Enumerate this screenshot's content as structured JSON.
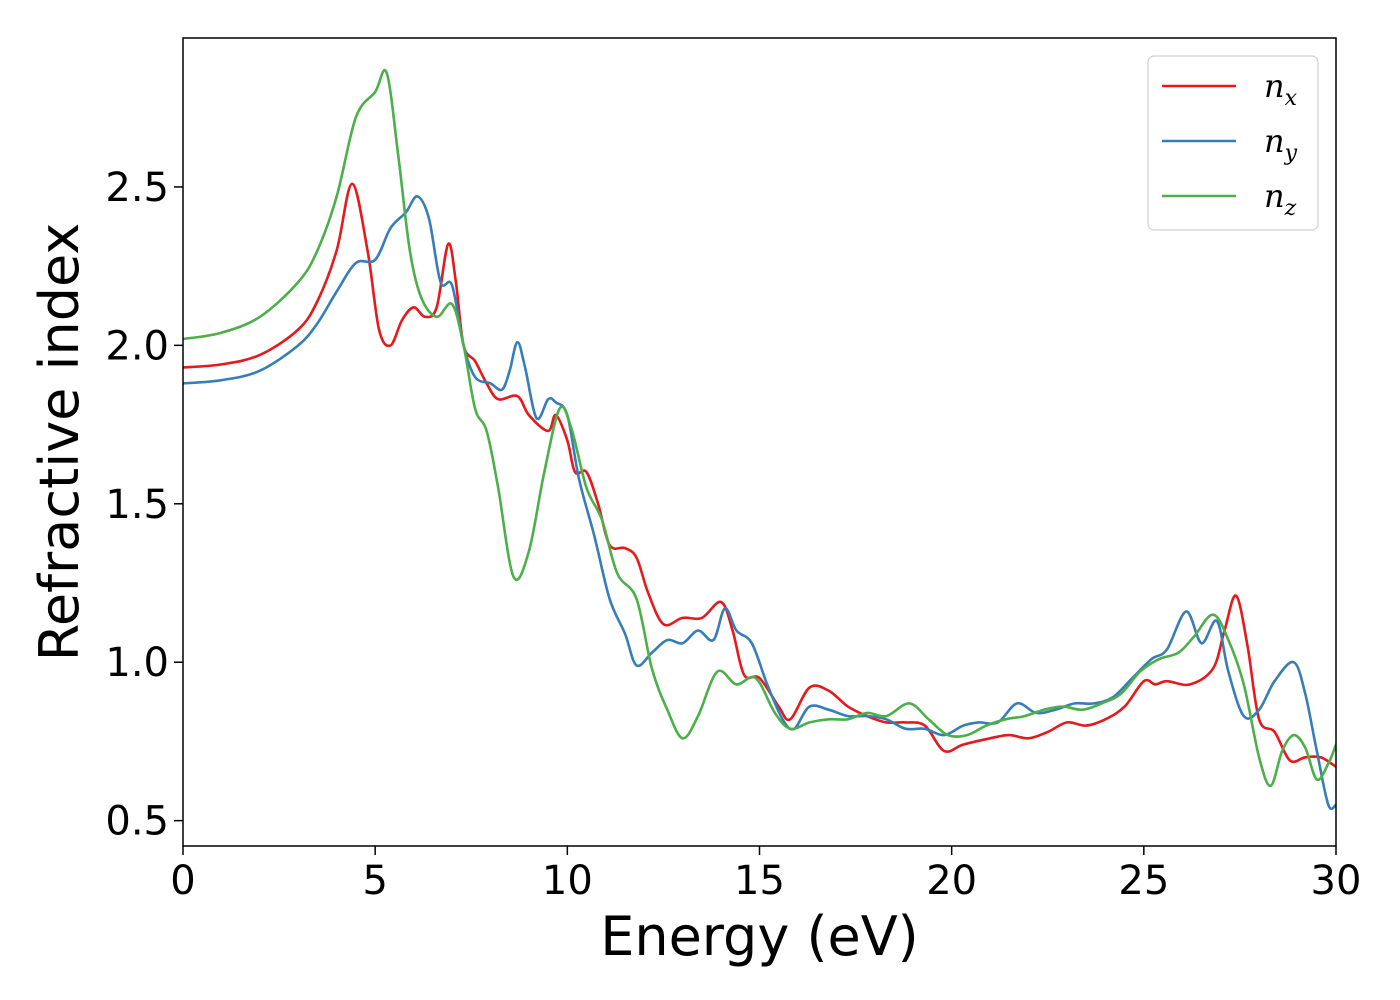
{
  "chart_data": {
    "type": "line",
    "xlabel": "Energy (eV)",
    "ylabel": "Refractive index",
    "xlim": [
      0,
      30
    ],
    "ylim": [
      0.42,
      2.97
    ],
    "grid": false,
    "legend_position": "top-right",
    "x_ticks": [
      "0",
      "5",
      "10",
      "15",
      "20",
      "25",
      "30"
    ],
    "y_ticks": [
      "0.5",
      "1.0",
      "1.5",
      "2.0",
      "2.5"
    ],
    "series": [
      {
        "name": "n_x",
        "base": "n",
        "sub": "x",
        "color": "#e41a1c",
        "points": [
          [
            0,
            1.93
          ],
          [
            1,
            1.94
          ],
          [
            2,
            1.97
          ],
          [
            3,
            2.05
          ],
          [
            3.5,
            2.14
          ],
          [
            4,
            2.3
          ],
          [
            4.4,
            2.51
          ],
          [
            4.8,
            2.3
          ],
          [
            5.1,
            2.05
          ],
          [
            5.4,
            2.0
          ],
          [
            5.7,
            2.08
          ],
          [
            6.0,
            2.12
          ],
          [
            6.3,
            2.09
          ],
          [
            6.6,
            2.12
          ],
          [
            6.9,
            2.32
          ],
          [
            7.1,
            2.2
          ],
          [
            7.3,
            2.0
          ],
          [
            7.6,
            1.95
          ],
          [
            7.9,
            1.88
          ],
          [
            8.2,
            1.83
          ],
          [
            8.7,
            1.84
          ],
          [
            9.0,
            1.78
          ],
          [
            9.5,
            1.73
          ],
          [
            9.7,
            1.78
          ],
          [
            10.0,
            1.7
          ],
          [
            10.2,
            1.6
          ],
          [
            10.5,
            1.6
          ],
          [
            10.8,
            1.5
          ],
          [
            11.1,
            1.37
          ],
          [
            11.5,
            1.36
          ],
          [
            11.8,
            1.33
          ],
          [
            12.1,
            1.22
          ],
          [
            12.5,
            1.12
          ],
          [
            13.0,
            1.14
          ],
          [
            13.5,
            1.14
          ],
          [
            14.0,
            1.19
          ],
          [
            14.3,
            1.1
          ],
          [
            14.6,
            0.96
          ],
          [
            15.0,
            0.95
          ],
          [
            15.5,
            0.86
          ],
          [
            15.8,
            0.82
          ],
          [
            16.3,
            0.92
          ],
          [
            16.8,
            0.91
          ],
          [
            17.3,
            0.86
          ],
          [
            17.8,
            0.83
          ],
          [
            18.3,
            0.81
          ],
          [
            18.8,
            0.81
          ],
          [
            19.3,
            0.8
          ],
          [
            19.8,
            0.72
          ],
          [
            20.3,
            0.74
          ],
          [
            21.0,
            0.76
          ],
          [
            21.5,
            0.77
          ],
          [
            22.0,
            0.76
          ],
          [
            22.5,
            0.78
          ],
          [
            23.0,
            0.81
          ],
          [
            23.5,
            0.8
          ],
          [
            24.0,
            0.82
          ],
          [
            24.5,
            0.86
          ],
          [
            25.0,
            0.94
          ],
          [
            25.3,
            0.93
          ],
          [
            25.6,
            0.94
          ],
          [
            26.2,
            0.93
          ],
          [
            26.8,
            0.98
          ],
          [
            27.1,
            1.1
          ],
          [
            27.4,
            1.21
          ],
          [
            27.7,
            1.05
          ],
          [
            28.0,
            0.82
          ],
          [
            28.4,
            0.78
          ],
          [
            28.8,
            0.69
          ],
          [
            29.2,
            0.7
          ],
          [
            29.6,
            0.7
          ],
          [
            30,
            0.67
          ]
        ]
      },
      {
        "name": "n_y",
        "base": "n",
        "sub": "y",
        "color": "#377eb8",
        "points": [
          [
            0,
            1.88
          ],
          [
            1,
            1.89
          ],
          [
            2,
            1.92
          ],
          [
            3,
            2.0
          ],
          [
            3.5,
            2.07
          ],
          [
            4,
            2.17
          ],
          [
            4.5,
            2.26
          ],
          [
            5.0,
            2.27
          ],
          [
            5.4,
            2.37
          ],
          [
            5.8,
            2.42
          ],
          [
            6.1,
            2.47
          ],
          [
            6.4,
            2.4
          ],
          [
            6.7,
            2.2
          ],
          [
            7.0,
            2.19
          ],
          [
            7.3,
            2.0
          ],
          [
            7.6,
            1.9
          ],
          [
            8.0,
            1.88
          ],
          [
            8.3,
            1.86
          ],
          [
            8.5,
            1.92
          ],
          [
            8.7,
            2.01
          ],
          [
            8.9,
            1.93
          ],
          [
            9.2,
            1.77
          ],
          [
            9.5,
            1.83
          ],
          [
            9.7,
            1.82
          ],
          [
            10.0,
            1.78
          ],
          [
            10.3,
            1.58
          ],
          [
            10.7,
            1.4
          ],
          [
            11.1,
            1.2
          ],
          [
            11.5,
            1.09
          ],
          [
            11.8,
            0.99
          ],
          [
            12.2,
            1.03
          ],
          [
            12.6,
            1.07
          ],
          [
            13.0,
            1.06
          ],
          [
            13.4,
            1.1
          ],
          [
            13.8,
            1.07
          ],
          [
            14.1,
            1.17
          ],
          [
            14.4,
            1.1
          ],
          [
            14.8,
            1.06
          ],
          [
            15.2,
            0.93
          ],
          [
            15.6,
            0.82
          ],
          [
            15.9,
            0.79
          ],
          [
            16.3,
            0.86
          ],
          [
            16.8,
            0.85
          ],
          [
            17.3,
            0.83
          ],
          [
            17.8,
            0.83
          ],
          [
            18.3,
            0.82
          ],
          [
            18.8,
            0.79
          ],
          [
            19.3,
            0.79
          ],
          [
            19.8,
            0.77
          ],
          [
            20.3,
            0.8
          ],
          [
            20.7,
            0.81
          ],
          [
            21.2,
            0.81
          ],
          [
            21.7,
            0.87
          ],
          [
            22.2,
            0.84
          ],
          [
            22.7,
            0.85
          ],
          [
            23.2,
            0.87
          ],
          [
            23.7,
            0.87
          ],
          [
            24.2,
            0.89
          ],
          [
            24.7,
            0.95
          ],
          [
            25.2,
            1.01
          ],
          [
            25.6,
            1.04
          ],
          [
            26.1,
            1.16
          ],
          [
            26.5,
            1.06
          ],
          [
            26.9,
            1.13
          ],
          [
            27.2,
            0.97
          ],
          [
            27.6,
            0.83
          ],
          [
            28.0,
            0.85
          ],
          [
            28.4,
            0.94
          ],
          [
            28.9,
            1.0
          ],
          [
            29.2,
            0.9
          ],
          [
            29.5,
            0.72
          ],
          [
            29.8,
            0.55
          ],
          [
            30,
            0.55
          ]
        ]
      },
      {
        "name": "n_z",
        "base": "n",
        "sub": "z",
        "color": "#4daf4a",
        "points": [
          [
            0,
            2.02
          ],
          [
            1,
            2.04
          ],
          [
            2,
            2.09
          ],
          [
            3,
            2.2
          ],
          [
            3.5,
            2.3
          ],
          [
            4,
            2.47
          ],
          [
            4.5,
            2.72
          ],
          [
            5.0,
            2.8
          ],
          [
            5.3,
            2.86
          ],
          [
            5.6,
            2.6
          ],
          [
            5.9,
            2.3
          ],
          [
            6.2,
            2.15
          ],
          [
            6.6,
            2.09
          ],
          [
            7.0,
            2.13
          ],
          [
            7.3,
            2.0
          ],
          [
            7.6,
            1.8
          ],
          [
            7.9,
            1.73
          ],
          [
            8.2,
            1.55
          ],
          [
            8.6,
            1.27
          ],
          [
            9.0,
            1.35
          ],
          [
            9.4,
            1.6
          ],
          [
            9.8,
            1.8
          ],
          [
            10.1,
            1.74
          ],
          [
            10.5,
            1.55
          ],
          [
            10.9,
            1.45
          ],
          [
            11.3,
            1.28
          ],
          [
            11.8,
            1.2
          ],
          [
            12.2,
            0.98
          ],
          [
            12.6,
            0.85
          ],
          [
            13.0,
            0.76
          ],
          [
            13.4,
            0.83
          ],
          [
            13.9,
            0.97
          ],
          [
            14.4,
            0.93
          ],
          [
            14.9,
            0.95
          ],
          [
            15.4,
            0.84
          ],
          [
            15.8,
            0.79
          ],
          [
            16.3,
            0.81
          ],
          [
            16.8,
            0.82
          ],
          [
            17.3,
            0.82
          ],
          [
            17.8,
            0.84
          ],
          [
            18.3,
            0.83
          ],
          [
            18.9,
            0.87
          ],
          [
            19.4,
            0.82
          ],
          [
            19.9,
            0.77
          ],
          [
            20.4,
            0.77
          ],
          [
            20.9,
            0.8
          ],
          [
            21.4,
            0.82
          ],
          [
            21.9,
            0.83
          ],
          [
            22.4,
            0.85
          ],
          [
            22.9,
            0.86
          ],
          [
            23.4,
            0.85
          ],
          [
            23.9,
            0.87
          ],
          [
            24.4,
            0.9
          ],
          [
            24.9,
            0.97
          ],
          [
            25.4,
            1.01
          ],
          [
            25.9,
            1.03
          ],
          [
            26.3,
            1.08
          ],
          [
            26.8,
            1.15
          ],
          [
            27.2,
            1.07
          ],
          [
            27.6,
            0.93
          ],
          [
            28.0,
            0.7
          ],
          [
            28.3,
            0.61
          ],
          [
            28.6,
            0.72
          ],
          [
            28.9,
            0.77
          ],
          [
            29.2,
            0.73
          ],
          [
            29.5,
            0.63
          ],
          [
            29.8,
            0.68
          ],
          [
            30,
            0.74
          ]
        ]
      }
    ]
  }
}
